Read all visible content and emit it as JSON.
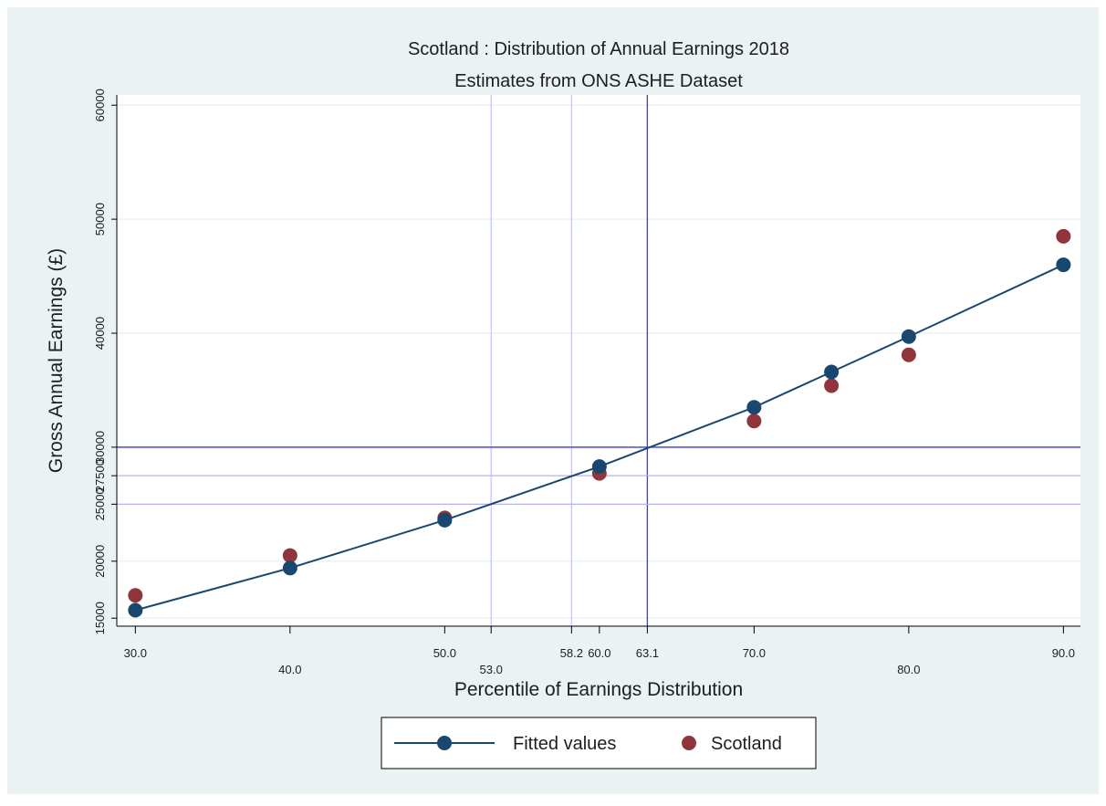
{
  "chart_data": {
    "type": "scatter",
    "title": "Scotland : Distribution of Annual Earnings 2018",
    "subtitle": "Estimates from ONS ASHE Dataset",
    "xlabel": "Percentile of Earnings Distribution",
    "ylabel": "Gross Annual Earnings (£)",
    "xlim": [
      28.8,
      91.1
    ],
    "ylim": [
      14300,
      60900
    ],
    "grid": true,
    "legend_position": "bottom",
    "x_ticks_row1": [
      "30.0",
      "50.0",
      "58.2",
      "60.0",
      "63.1",
      "70.0",
      "90.0"
    ],
    "x_ticks_row2": [
      "40.0",
      "53.0",
      "80.0"
    ],
    "x_tick_values": [
      30,
      40,
      50,
      53,
      58.2,
      60,
      63.1,
      70,
      80,
      90
    ],
    "y_ticks": [
      "15000",
      "20000",
      "25000",
      "27500",
      "30000",
      "40000",
      "50000",
      "60000"
    ],
    "y_tick_values": [
      15000,
      20000,
      25000,
      27500,
      30000,
      40000,
      50000,
      60000
    ],
    "reference_lines": {
      "vertical": [
        53.0,
        58.2,
        63.1
      ],
      "horizontal": [
        25000,
        27500,
        30000
      ]
    },
    "series": [
      {
        "name": "Fitted values",
        "color": "#1a476f",
        "kind": "line",
        "x": [
          30,
          40,
          50,
          60,
          70,
          75,
          80,
          90
        ],
        "y": [
          15700,
          19400,
          23600,
          28300,
          33500,
          36600,
          39700,
          46000
        ]
      },
      {
        "name": "Scotland",
        "color": "#90353b",
        "kind": "scatter",
        "x": [
          30,
          40,
          50,
          60,
          70,
          75,
          80,
          90
        ],
        "y": [
          17000,
          20500,
          23800,
          27700,
          32300,
          35400,
          38100,
          48500
        ]
      }
    ]
  }
}
